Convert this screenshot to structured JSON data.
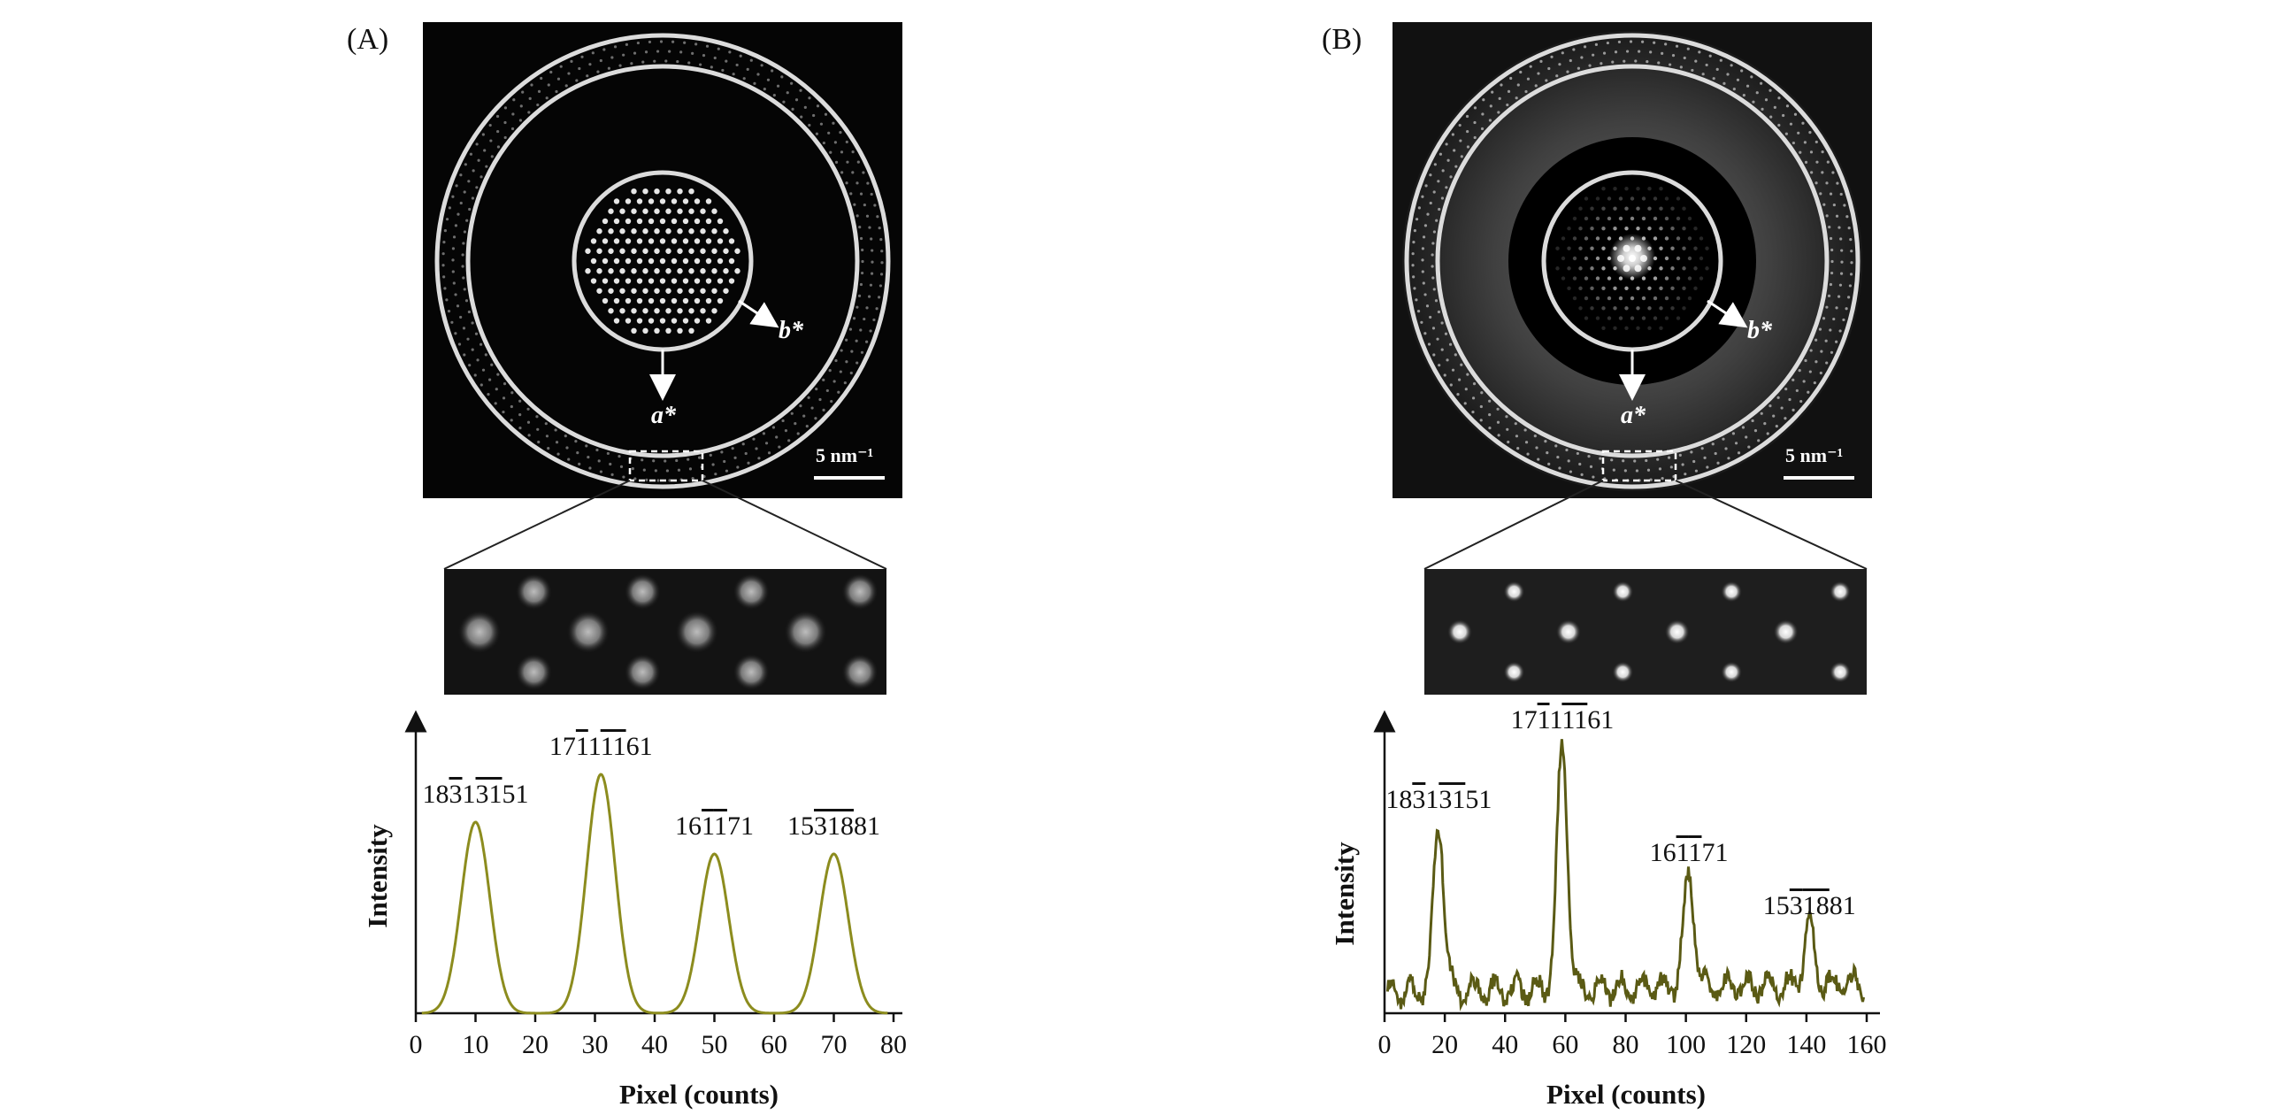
{
  "panels": [
    {
      "id": "A",
      "label": "(A)",
      "diffraction": {
        "vec_a": "a*",
        "vec_b": "b*",
        "scale": "5 nm⁻¹",
        "background": "clean"
      },
      "chart_data": {
        "type": "line",
        "xlabel": "Pixel (counts)",
        "ylabel": "Intensity",
        "xlim": [
          0,
          80
        ],
        "xticks": [
          0,
          10,
          20,
          30,
          40,
          50,
          60,
          70,
          80
        ],
        "series_color": "#8c8c1e",
        "peaks": [
          {
            "x": 10,
            "height": 0.72,
            "label": {
              "p1": "18",
              "p2": "3",
              "p3": "1",
              "p4": "51",
              "bar": "31"
            }
          },
          {
            "x": 31,
            "height": 0.9,
            "label": {
              "p1": "17",
              "p2": "1",
              "p3": "1",
              "p4": "61",
              "bar": "11"
            }
          },
          {
            "x": 50,
            "height": 0.6,
            "label": {
              "p1": "16",
              "p2": "1",
              "p3": "",
              "p4": "71",
              "bar": "1"
            }
          },
          {
            "x": 70,
            "height": 0.6,
            "label": {
              "p1": "15",
              "p2": "3",
              "p3": "",
              "p4": "81",
              "bar": "18"
            }
          }
        ],
        "baseline": 0.0,
        "noisy": false
      }
    },
    {
      "id": "B",
      "label": "(B)",
      "diffraction": {
        "vec_a": "a*",
        "vec_b": "b*",
        "scale": "5 nm⁻¹",
        "background": "diffuse"
      },
      "chart_data": {
        "type": "line",
        "xlabel": "Pixel (counts)",
        "ylabel": "Intensity",
        "xlim": [
          0,
          160
        ],
        "xticks": [
          0,
          20,
          40,
          60,
          80,
          100,
          120,
          140,
          160
        ],
        "series_color": "#5a5a14",
        "peaks": [
          {
            "x": 18,
            "height": 0.62,
            "label": {
              "p1": "18",
              "p2": "3",
              "p3": "1",
              "p4": "51",
              "bar": "31"
            }
          },
          {
            "x": 59,
            "height": 0.92,
            "label": {
              "p1": "17",
              "p2": "1",
              "p3": "1",
              "p4": "61",
              "bar": "11"
            }
          },
          {
            "x": 101,
            "height": 0.42,
            "label": {
              "p1": "16",
              "p2": "1",
              "p3": "",
              "p4": "71",
              "bar": "1"
            }
          },
          {
            "x": 141,
            "height": 0.22,
            "label": {
              "p1": "15",
              "p2": "3",
              "p3": "",
              "p4": "81",
              "bar": "18"
            }
          }
        ],
        "baseline": 0.08,
        "noisy": true
      }
    }
  ]
}
